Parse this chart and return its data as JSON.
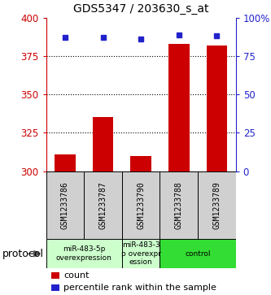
{
  "title": "GDS5347 / 203630_s_at",
  "samples": [
    "GSM1233786",
    "GSM1233787",
    "GSM1233790",
    "GSM1233788",
    "GSM1233789"
  ],
  "count_values": [
    311,
    335,
    310,
    383,
    382
  ],
  "percentile_values": [
    87,
    87,
    86,
    89,
    88
  ],
  "ylim_left": [
    300,
    400
  ],
  "ylim_right": [
    0,
    100
  ],
  "yticks_left": [
    300,
    325,
    350,
    375,
    400
  ],
  "yticks_right": [
    0,
    25,
    50,
    75,
    100
  ],
  "ytick_labels_right": [
    "0",
    "25",
    "50",
    "75",
    "100%"
  ],
  "bar_color": "#cc0000",
  "dot_color": "#2222cc",
  "gridline_values": [
    325,
    350,
    375
  ],
  "protocol_groups": [
    {
      "label": "miR-483-5p\noverexpression",
      "start": 0,
      "end": 1,
      "color": "#ccffcc"
    },
    {
      "label": "miR-483-3\np overexpr\nession",
      "start": 2,
      "end": 2,
      "color": "#ccffcc"
    },
    {
      "label": "control",
      "start": 3,
      "end": 4,
      "color": "#33dd33"
    }
  ],
  "protocol_label": "protocol",
  "legend_count_label": "count",
  "legend_percentile_label": "percentile rank within the sample",
  "left_axis_color": "#cc0000",
  "right_axis_color": "#2222cc",
  "sample_box_color": "#d0d0d0",
  "bg_color": "#ffffff"
}
